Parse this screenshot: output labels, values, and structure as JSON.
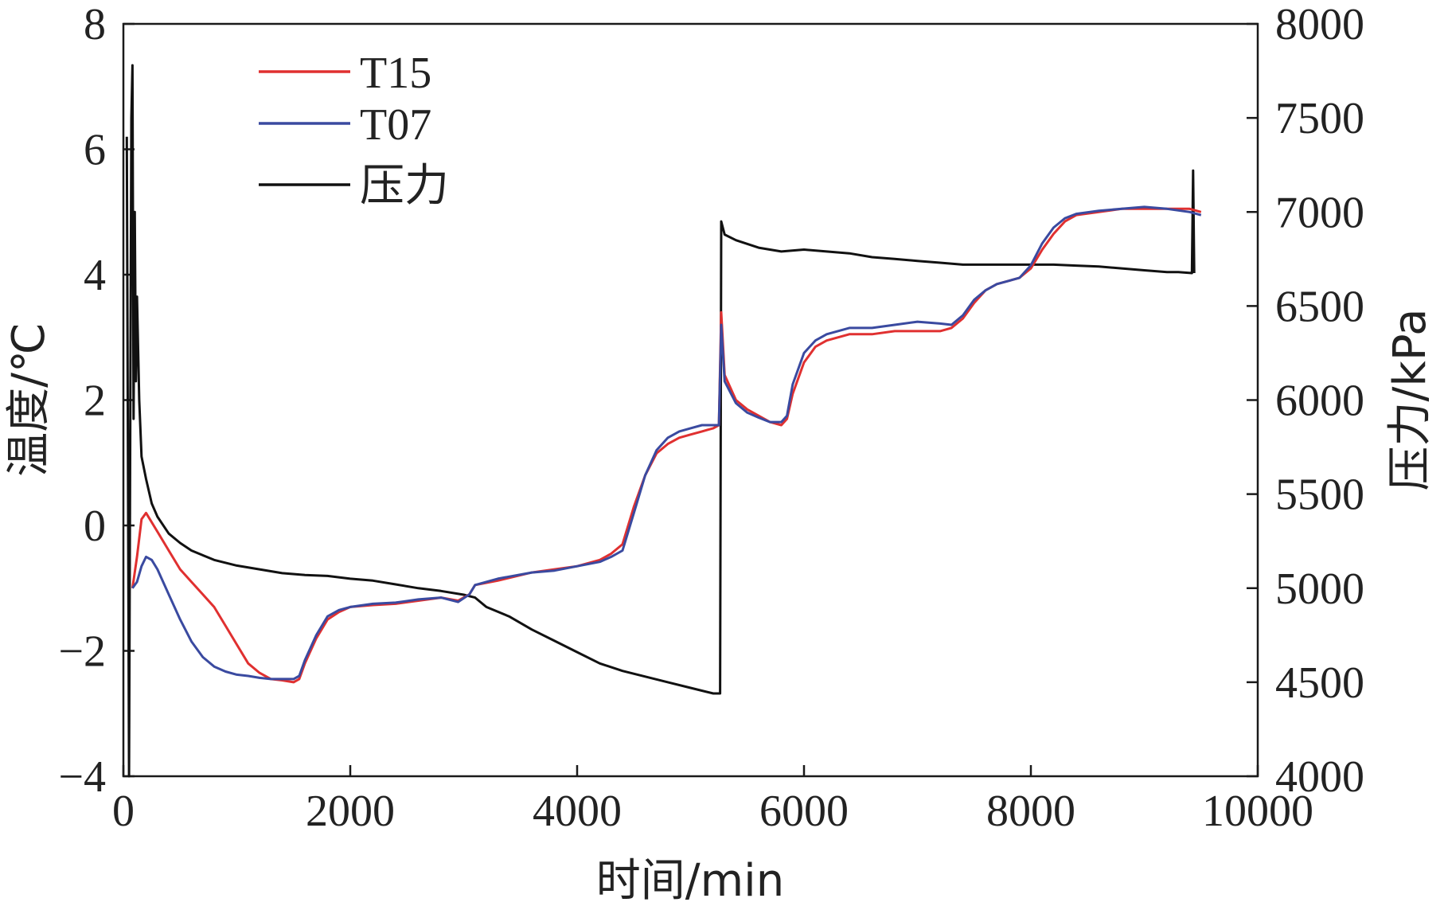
{
  "chart_data": {
    "type": "line",
    "xlabel": "时间/min",
    "ylabel_left": "温度/℃",
    "ylabel_right": "压力/kPa",
    "xlim": [
      0,
      10000
    ],
    "ylim_left": [
      -4,
      8
    ],
    "ylim_right": [
      4000,
      8000
    ],
    "x_ticks": [
      0,
      2000,
      4000,
      6000,
      8000,
      10000
    ],
    "x_tick_labels": [
      "0",
      "2000",
      "4000",
      "6000",
      "8000",
      "10000"
    ],
    "y_left_ticks": [
      -4,
      -2,
      0,
      2,
      4,
      6,
      8
    ],
    "y_left_tick_labels": [
      "−4",
      "−2",
      "0",
      "2",
      "4",
      "6",
      "8"
    ],
    "y_right_ticks": [
      4000,
      4500,
      5000,
      5500,
      6000,
      6500,
      7000,
      7500,
      8000
    ],
    "y_right_tick_labels": [
      "4000",
      "4500",
      "5000",
      "5500",
      "6000",
      "6500",
      "7000",
      "7500",
      "8000"
    ],
    "legend_position": "top-left",
    "grid": false,
    "series": [
      {
        "name": "T15",
        "axis": "left",
        "color": "#e03030",
        "points": [
          [
            80,
            -1.0
          ],
          [
            120,
            -0.5
          ],
          [
            160,
            0.1
          ],
          [
            200,
            0.2
          ],
          [
            300,
            -0.1
          ],
          [
            400,
            -0.4
          ],
          [
            500,
            -0.7
          ],
          [
            600,
            -0.9
          ],
          [
            700,
            -1.1
          ],
          [
            800,
            -1.3
          ],
          [
            900,
            -1.6
          ],
          [
            1000,
            -1.9
          ],
          [
            1100,
            -2.2
          ],
          [
            1200,
            -2.35
          ],
          [
            1300,
            -2.45
          ],
          [
            1400,
            -2.47
          ],
          [
            1500,
            -2.5
          ],
          [
            1550,
            -2.45
          ],
          [
            1600,
            -2.2
          ],
          [
            1700,
            -1.8
          ],
          [
            1800,
            -1.5
          ],
          [
            1900,
            -1.38
          ],
          [
            2000,
            -1.3
          ],
          [
            2200,
            -1.27
          ],
          [
            2400,
            -1.25
          ],
          [
            2600,
            -1.2
          ],
          [
            2800,
            -1.15
          ],
          [
            2950,
            -1.2
          ],
          [
            3050,
            -1.1
          ],
          [
            3100,
            -0.95
          ],
          [
            3300,
            -0.88
          ],
          [
            3600,
            -0.75
          ],
          [
            3800,
            -0.7
          ],
          [
            4000,
            -0.65
          ],
          [
            4200,
            -0.55
          ],
          [
            4300,
            -0.45
          ],
          [
            4400,
            -0.3
          ],
          [
            4500,
            0.3
          ],
          [
            4600,
            0.8
          ],
          [
            4700,
            1.15
          ],
          [
            4800,
            1.3
          ],
          [
            4900,
            1.4
          ],
          [
            5000,
            1.45
          ],
          [
            5100,
            1.5
          ],
          [
            5200,
            1.55
          ],
          [
            5250,
            1.6
          ],
          [
            5270,
            3.4
          ],
          [
            5300,
            2.4
          ],
          [
            5400,
            2.0
          ],
          [
            5500,
            1.85
          ],
          [
            5600,
            1.75
          ],
          [
            5700,
            1.65
          ],
          [
            5800,
            1.6
          ],
          [
            5850,
            1.7
          ],
          [
            5900,
            2.1
          ],
          [
            6000,
            2.6
          ],
          [
            6100,
            2.85
          ],
          [
            6200,
            2.95
          ],
          [
            6400,
            3.05
          ],
          [
            6600,
            3.05
          ],
          [
            6800,
            3.1
          ],
          [
            7000,
            3.1
          ],
          [
            7200,
            3.1
          ],
          [
            7300,
            3.15
          ],
          [
            7400,
            3.3
          ],
          [
            7500,
            3.55
          ],
          [
            7600,
            3.75
          ],
          [
            7700,
            3.85
          ],
          [
            7800,
            3.9
          ],
          [
            7900,
            3.95
          ],
          [
            8000,
            4.1
          ],
          [
            8100,
            4.4
          ],
          [
            8200,
            4.65
          ],
          [
            8300,
            4.85
          ],
          [
            8400,
            4.95
          ],
          [
            8600,
            5.0
          ],
          [
            8800,
            5.05
          ],
          [
            9000,
            5.05
          ],
          [
            9200,
            5.05
          ],
          [
            9400,
            5.05
          ],
          [
            9500,
            5.0
          ]
        ]
      },
      {
        "name": "T07",
        "axis": "left",
        "color": "#3a4aa0",
        "points": [
          [
            80,
            -1.0
          ],
          [
            120,
            -0.9
          ],
          [
            160,
            -0.65
          ],
          [
            200,
            -0.5
          ],
          [
            250,
            -0.55
          ],
          [
            300,
            -0.7
          ],
          [
            400,
            -1.1
          ],
          [
            500,
            -1.5
          ],
          [
            600,
            -1.85
          ],
          [
            700,
            -2.1
          ],
          [
            800,
            -2.25
          ],
          [
            900,
            -2.33
          ],
          [
            1000,
            -2.38
          ],
          [
            1100,
            -2.4
          ],
          [
            1200,
            -2.43
          ],
          [
            1300,
            -2.45
          ],
          [
            1400,
            -2.45
          ],
          [
            1500,
            -2.45
          ],
          [
            1550,
            -2.4
          ],
          [
            1600,
            -2.15
          ],
          [
            1700,
            -1.75
          ],
          [
            1800,
            -1.45
          ],
          [
            1900,
            -1.35
          ],
          [
            2000,
            -1.3
          ],
          [
            2200,
            -1.25
          ],
          [
            2400,
            -1.23
          ],
          [
            2600,
            -1.18
          ],
          [
            2800,
            -1.15
          ],
          [
            2950,
            -1.22
          ],
          [
            3050,
            -1.1
          ],
          [
            3100,
            -0.95
          ],
          [
            3300,
            -0.85
          ],
          [
            3600,
            -0.75
          ],
          [
            3800,
            -0.72
          ],
          [
            4000,
            -0.65
          ],
          [
            4200,
            -0.58
          ],
          [
            4300,
            -0.5
          ],
          [
            4400,
            -0.4
          ],
          [
            4500,
            0.2
          ],
          [
            4600,
            0.8
          ],
          [
            4700,
            1.2
          ],
          [
            4800,
            1.4
          ],
          [
            4900,
            1.5
          ],
          [
            5000,
            1.55
          ],
          [
            5100,
            1.6
          ],
          [
            5200,
            1.6
          ],
          [
            5250,
            1.6
          ],
          [
            5270,
            3.2
          ],
          [
            5300,
            2.3
          ],
          [
            5400,
            1.95
          ],
          [
            5500,
            1.8
          ],
          [
            5600,
            1.72
          ],
          [
            5700,
            1.65
          ],
          [
            5800,
            1.65
          ],
          [
            5850,
            1.75
          ],
          [
            5900,
            2.25
          ],
          [
            6000,
            2.75
          ],
          [
            6100,
            2.95
          ],
          [
            6200,
            3.05
          ],
          [
            6400,
            3.15
          ],
          [
            6600,
            3.15
          ],
          [
            6800,
            3.2
          ],
          [
            7000,
            3.25
          ],
          [
            7200,
            3.22
          ],
          [
            7300,
            3.2
          ],
          [
            7400,
            3.35
          ],
          [
            7500,
            3.6
          ],
          [
            7600,
            3.75
          ],
          [
            7700,
            3.85
          ],
          [
            7800,
            3.9
          ],
          [
            7900,
            3.95
          ],
          [
            8000,
            4.15
          ],
          [
            8100,
            4.5
          ],
          [
            8200,
            4.75
          ],
          [
            8300,
            4.9
          ],
          [
            8400,
            4.97
          ],
          [
            8600,
            5.02
          ],
          [
            8800,
            5.05
          ],
          [
            9000,
            5.08
          ],
          [
            9200,
            5.05
          ],
          [
            9400,
            5.0
          ],
          [
            9500,
            4.95
          ]
        ]
      },
      {
        "name": "压力",
        "axis": "right",
        "color": "#111111",
        "points": [
          [
            30,
            7400
          ],
          [
            50,
            3800
          ],
          [
            70,
            7500
          ],
          [
            80,
            7780
          ],
          [
            90,
            5900
          ],
          [
            100,
            7000
          ],
          [
            110,
            6100
          ],
          [
            120,
            6550
          ],
          [
            140,
            6000
          ],
          [
            160,
            5700
          ],
          [
            200,
            5580
          ],
          [
            250,
            5450
          ],
          [
            300,
            5380
          ],
          [
            400,
            5290
          ],
          [
            500,
            5240
          ],
          [
            600,
            5200
          ],
          [
            800,
            5150
          ],
          [
            1000,
            5120
          ],
          [
            1200,
            5100
          ],
          [
            1400,
            5080
          ],
          [
            1600,
            5070
          ],
          [
            1800,
            5065
          ],
          [
            2000,
            5050
          ],
          [
            2200,
            5040
          ],
          [
            2400,
            5020
          ],
          [
            2600,
            5000
          ],
          [
            2800,
            4985
          ],
          [
            3000,
            4965
          ],
          [
            3100,
            4950
          ],
          [
            3200,
            4900
          ],
          [
            3400,
            4850
          ],
          [
            3600,
            4780
          ],
          [
            3800,
            4720
          ],
          [
            4000,
            4660
          ],
          [
            4200,
            4600
          ],
          [
            4400,
            4560
          ],
          [
            4600,
            4530
          ],
          [
            4800,
            4500
          ],
          [
            5000,
            4470
          ],
          [
            5200,
            4440
          ],
          [
            5260,
            4440
          ],
          [
            5270,
            6950
          ],
          [
            5300,
            6880
          ],
          [
            5400,
            6850
          ],
          [
            5600,
            6810
          ],
          [
            5800,
            6790
          ],
          [
            6000,
            6800
          ],
          [
            6200,
            6790
          ],
          [
            6400,
            6780
          ],
          [
            6600,
            6760
          ],
          [
            6800,
            6750
          ],
          [
            7000,
            6740
          ],
          [
            7200,
            6730
          ],
          [
            7400,
            6720
          ],
          [
            7600,
            6720
          ],
          [
            7800,
            6720
          ],
          [
            8000,
            6720
          ],
          [
            8200,
            6720
          ],
          [
            8400,
            6715
          ],
          [
            8600,
            6710
          ],
          [
            8800,
            6700
          ],
          [
            9000,
            6690
          ],
          [
            9200,
            6680
          ],
          [
            9300,
            6680
          ],
          [
            9420,
            6675
          ],
          [
            9430,
            7220
          ],
          [
            9440,
            6675
          ]
        ]
      }
    ]
  }
}
